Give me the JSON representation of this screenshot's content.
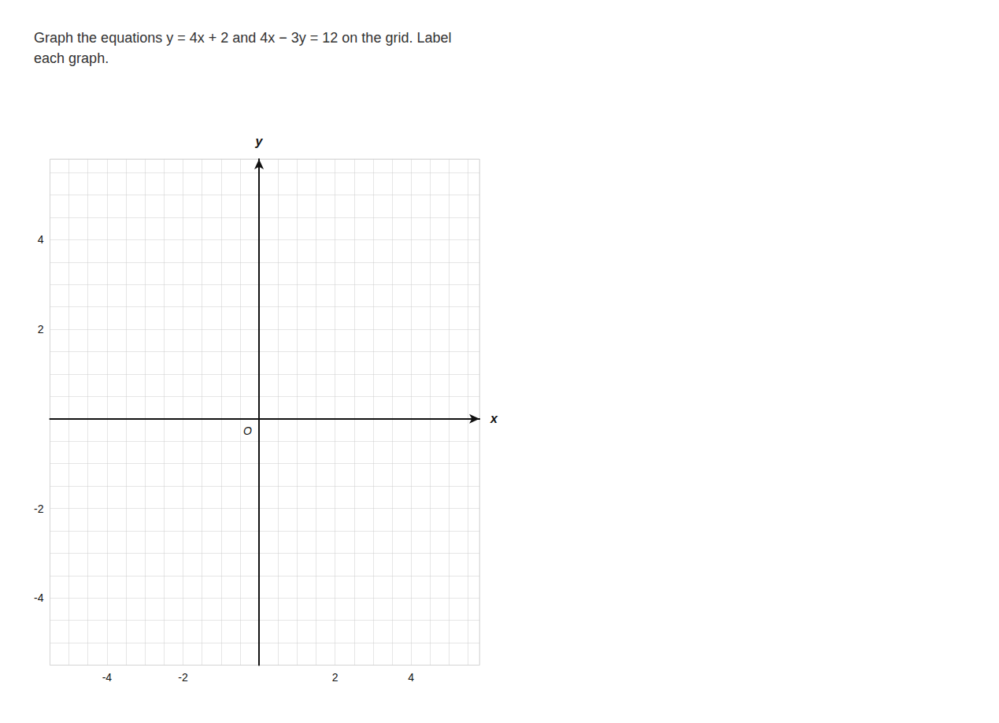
{
  "chart_data": {
    "type": "blank",
    "title": "Graph the equations y = 4x + 2 and 4x − 3y = 12 on the grid. Label\neach graph.",
    "xlabel": "x",
    "ylabel": "y",
    "annotations": [
      "O"
    ],
    "xlim": [
      -5.5,
      5.8
    ],
    "ylim": [
      -5.5,
      5.8
    ],
    "xticks": [
      -4,
      -2,
      2,
      4
    ],
    "yticks": [
      4,
      2,
      -2,
      -4
    ],
    "grid": true
  }
}
